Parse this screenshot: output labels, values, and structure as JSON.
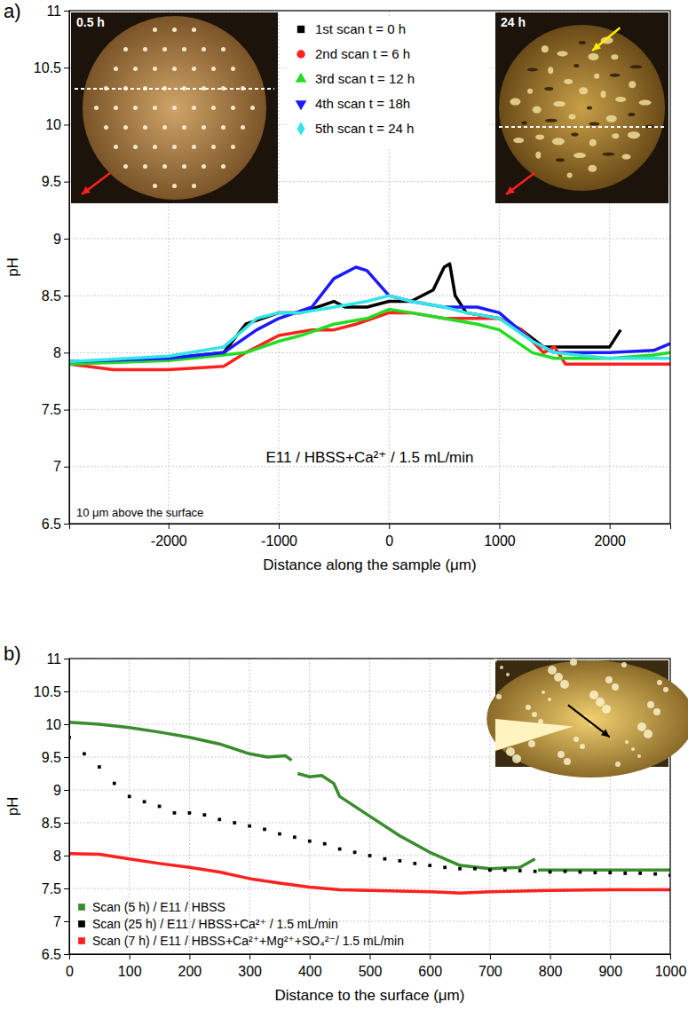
{
  "chart_data": [
    {
      "type": "line",
      "panel_label": "a)",
      "x_label": "Distance along the sample (μm)",
      "y_label": "pH",
      "xlim": [
        -2900,
        2550
      ],
      "xticks": [
        -2000,
        -1000,
        0,
        1000,
        2000
      ],
      "ylim": [
        6.5,
        11
      ],
      "yticks": [
        6.5,
        7,
        7.5,
        8,
        8.5,
        9,
        9.5,
        10,
        10.5,
        11
      ],
      "grid": true,
      "legend": "top",
      "annotations": [
        "E11 / HBSS+Ca²⁺ / 1.5 mL/min",
        "10 μm above the surface"
      ],
      "inset_labels": [
        "0.5 h",
        "24 h"
      ],
      "series": [
        {
          "name": "1st scan  t = 0 h",
          "color": "#000000",
          "marker": "square",
          "line_style": "solid",
          "x": [
            -2900,
            -2500,
            -2000,
            -1500,
            -1300,
            -1000,
            -800,
            -500,
            -400,
            -200,
            0,
            200,
            400,
            500,
            550,
            600,
            700,
            1000,
            1200,
            1400,
            1600,
            1800,
            2000,
            2100
          ],
          "values": [
            7.92,
            7.93,
            7.95,
            8.0,
            8.25,
            8.35,
            8.35,
            8.45,
            8.4,
            8.4,
            8.45,
            8.45,
            8.55,
            8.75,
            8.78,
            8.5,
            8.35,
            8.3,
            8.2,
            8.05,
            8.05,
            8.05,
            8.05,
            8.2
          ]
        },
        {
          "name": "2nd scan  t = 6 h",
          "color": "#ff2020",
          "marker": "circle",
          "line_style": "solid",
          "x": [
            -2900,
            -2500,
            -2000,
            -1500,
            -1300,
            -1000,
            -700,
            -500,
            -300,
            0,
            200,
            500,
            800,
            1000,
            1200,
            1400,
            1500,
            1600,
            2000,
            2400,
            2550
          ],
          "values": [
            7.9,
            7.85,
            7.85,
            7.88,
            8.0,
            8.15,
            8.2,
            8.2,
            8.25,
            8.35,
            8.35,
            8.3,
            8.3,
            8.3,
            8.2,
            8.0,
            8.05,
            7.9,
            7.9,
            7.9,
            7.9
          ]
        },
        {
          "name": "3rd scan  t = 12 h",
          "color": "#22dd22",
          "marker": "triangle",
          "line_style": "solid",
          "x": [
            -2900,
            -2000,
            -1500,
            -1300,
            -1000,
            -800,
            -500,
            -200,
            0,
            200,
            500,
            800,
            1000,
            1300,
            1500,
            2000,
            2400,
            2550
          ],
          "values": [
            7.9,
            7.93,
            7.98,
            8.0,
            8.1,
            8.15,
            8.25,
            8.3,
            8.38,
            8.35,
            8.3,
            8.25,
            8.2,
            8.0,
            7.95,
            7.95,
            7.98,
            8.0
          ]
        },
        {
          "name": "4th scan  t = 18h",
          "color": "#1a1aff",
          "marker": "triangle-down",
          "line_style": "solid",
          "x": [
            -2900,
            -2000,
            -1500,
            -1200,
            -1000,
            -700,
            -500,
            -300,
            -200,
            0,
            200,
            500,
            800,
            1000,
            1300,
            1500,
            2000,
            2400,
            2550
          ],
          "values": [
            7.92,
            7.95,
            8.0,
            8.2,
            8.3,
            8.4,
            8.65,
            8.75,
            8.72,
            8.5,
            8.45,
            8.4,
            8.4,
            8.35,
            8.1,
            8.0,
            8.0,
            8.02,
            8.08
          ]
        },
        {
          "name": "5th scan  t = 24 h",
          "color": "#33e6e6",
          "marker": "diamond",
          "line_style": "solid",
          "x": [
            -2900,
            -2000,
            -1500,
            -1200,
            -1000,
            -800,
            -500,
            -200,
            0,
            200,
            500,
            700,
            1000,
            1300,
            1500,
            2000,
            2400,
            2550
          ],
          "values": [
            7.92,
            7.97,
            8.05,
            8.3,
            8.35,
            8.35,
            8.4,
            8.45,
            8.5,
            8.45,
            8.4,
            8.35,
            8.3,
            8.1,
            8.0,
            7.95,
            7.95,
            7.95
          ]
        }
      ]
    },
    {
      "type": "line",
      "panel_label": "b)",
      "x_label": "Distance to the surface (μm)",
      "y_label": "pH",
      "xlim": [
        0,
        1000
      ],
      "xticks": [
        0,
        100,
        200,
        300,
        400,
        500,
        600,
        700,
        800,
        900,
        1000
      ],
      "ylim": [
        6.5,
        11
      ],
      "yticks": [
        6.5,
        7,
        7.5,
        8,
        8.5,
        9,
        9.5,
        10,
        10.5,
        11
      ],
      "grid": true,
      "legend": "lower left",
      "series": [
        {
          "name": "Scan (5 h) / E11 / HBSS",
          "color": "#3a8c2e",
          "marker": "square",
          "line_style": "solid",
          "x": [
            0,
            50,
            100,
            150,
            200,
            250,
            300,
            330,
            360,
            370,
            375,
            380,
            400,
            420,
            440,
            450,
            500,
            550,
            600,
            650,
            700,
            750,
            775,
            778,
            780,
            850,
            1000
          ],
          "values": [
            10.03,
            10.0,
            9.95,
            9.88,
            9.8,
            9.7,
            9.55,
            9.5,
            9.52,
            9.45,
            null,
            9.25,
            9.2,
            9.22,
            9.1,
            8.9,
            8.6,
            8.3,
            8.05,
            7.85,
            7.8,
            7.82,
            7.95,
            null,
            7.78,
            7.78,
            7.78
          ]
        },
        {
          "name": "Scan (25 h) / E11 / HBSS+Ca²⁺ / 1.5 mL/min",
          "color": "#000000",
          "marker": "square",
          "line_style": "none",
          "x": [
            0,
            25,
            50,
            75,
            100,
            125,
            150,
            175,
            200,
            225,
            250,
            275,
            300,
            325,
            350,
            375,
            400,
            425,
            450,
            475,
            500,
            525,
            550,
            575,
            600,
            625,
            650,
            675,
            700,
            725,
            750,
            775,
            800,
            825,
            850,
            875,
            900,
            925,
            950,
            975,
            1000
          ],
          "values": [
            9.8,
            9.55,
            9.35,
            9.1,
            8.9,
            8.82,
            8.75,
            8.65,
            8.65,
            8.62,
            8.55,
            8.5,
            8.45,
            8.4,
            8.33,
            8.28,
            8.22,
            8.18,
            8.1,
            8.05,
            8.0,
            7.95,
            7.92,
            7.88,
            7.85,
            7.82,
            7.8,
            7.8,
            7.78,
            7.78,
            7.77,
            7.76,
            7.75,
            7.76,
            7.75,
            7.74,
            7.74,
            7.73,
            7.73,
            7.72,
            7.7
          ]
        },
        {
          "name": "Scan (7 h) / E11 / HBSS+Ca²⁺+Mg²⁺+SO₄²⁻/ 1.5 mL/min",
          "color": "#ff2020",
          "marker": "square",
          "line_style": "solid",
          "x": [
            0,
            50,
            100,
            150,
            200,
            250,
            300,
            350,
            400,
            450,
            500,
            600,
            650,
            700,
            800,
            900,
            1000
          ],
          "values": [
            8.03,
            8.02,
            7.95,
            7.88,
            7.82,
            7.75,
            7.65,
            7.58,
            7.52,
            7.48,
            7.47,
            7.45,
            7.43,
            7.45,
            7.47,
            7.48,
            7.48
          ]
        }
      ]
    }
  ]
}
